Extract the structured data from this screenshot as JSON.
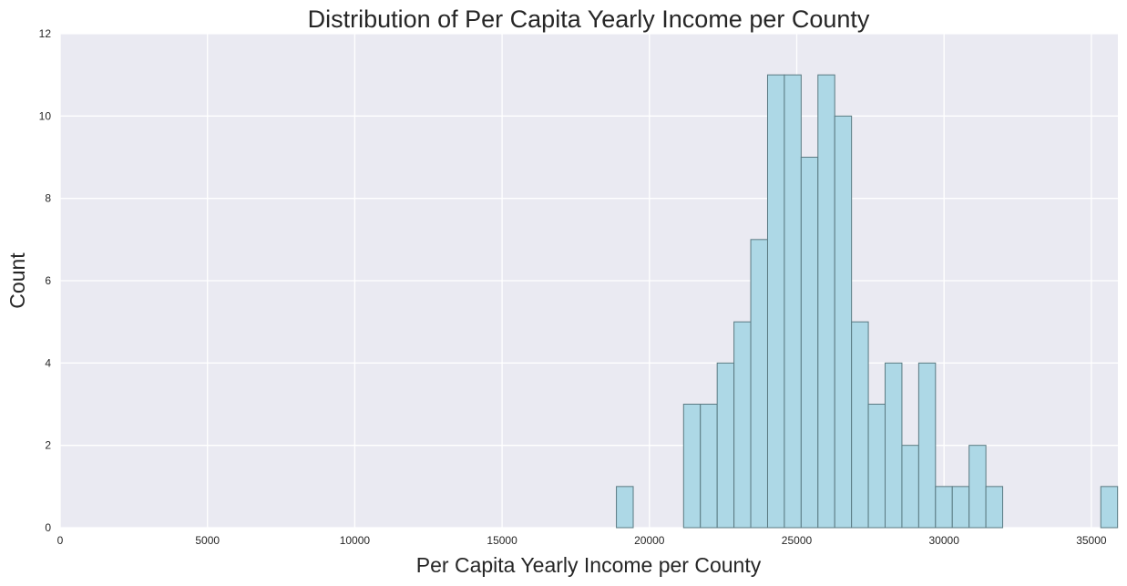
{
  "chart_data": {
    "type": "bar",
    "subtype": "histogram",
    "title": "Distribution of Per Capita Yearly Income per County",
    "xlabel": "Per Capita Yearly Income per County",
    "ylabel": "Count",
    "xlim": [
      0,
      35900
    ],
    "ylim": [
      0,
      12
    ],
    "xticks": [
      0,
      5000,
      10000,
      15000,
      20000,
      25000,
      30000,
      35000
    ],
    "yticks": [
      0,
      2,
      4,
      6,
      8,
      10,
      12
    ],
    "grid": true,
    "legend": "none",
    "bin_width": 570,
    "bins": [
      {
        "x0": 18880,
        "count": 1
      },
      {
        "x0": 21160,
        "count": 3
      },
      {
        "x0": 21730,
        "count": 3
      },
      {
        "x0": 22300,
        "count": 4
      },
      {
        "x0": 22870,
        "count": 5
      },
      {
        "x0": 23440,
        "count": 7
      },
      {
        "x0": 24010,
        "count": 11
      },
      {
        "x0": 24580,
        "count": 11
      },
      {
        "x0": 25150,
        "count": 9
      },
      {
        "x0": 25720,
        "count": 11
      },
      {
        "x0": 26290,
        "count": 10
      },
      {
        "x0": 26860,
        "count": 5
      },
      {
        "x0": 27430,
        "count": 3
      },
      {
        "x0": 28000,
        "count": 4
      },
      {
        "x0": 28570,
        "count": 2
      },
      {
        "x0": 29140,
        "count": 4
      },
      {
        "x0": 29710,
        "count": 1
      },
      {
        "x0": 30280,
        "count": 1
      },
      {
        "x0": 30850,
        "count": 2
      },
      {
        "x0": 31420,
        "count": 1
      },
      {
        "x0": 35320,
        "count": 1
      }
    ],
    "colors": {
      "plot_background": "#eaeaf2",
      "grid": "#ffffff",
      "bar_fill": "#add8e6",
      "bar_edge": "#5a7a82",
      "text": "#262626"
    }
  }
}
